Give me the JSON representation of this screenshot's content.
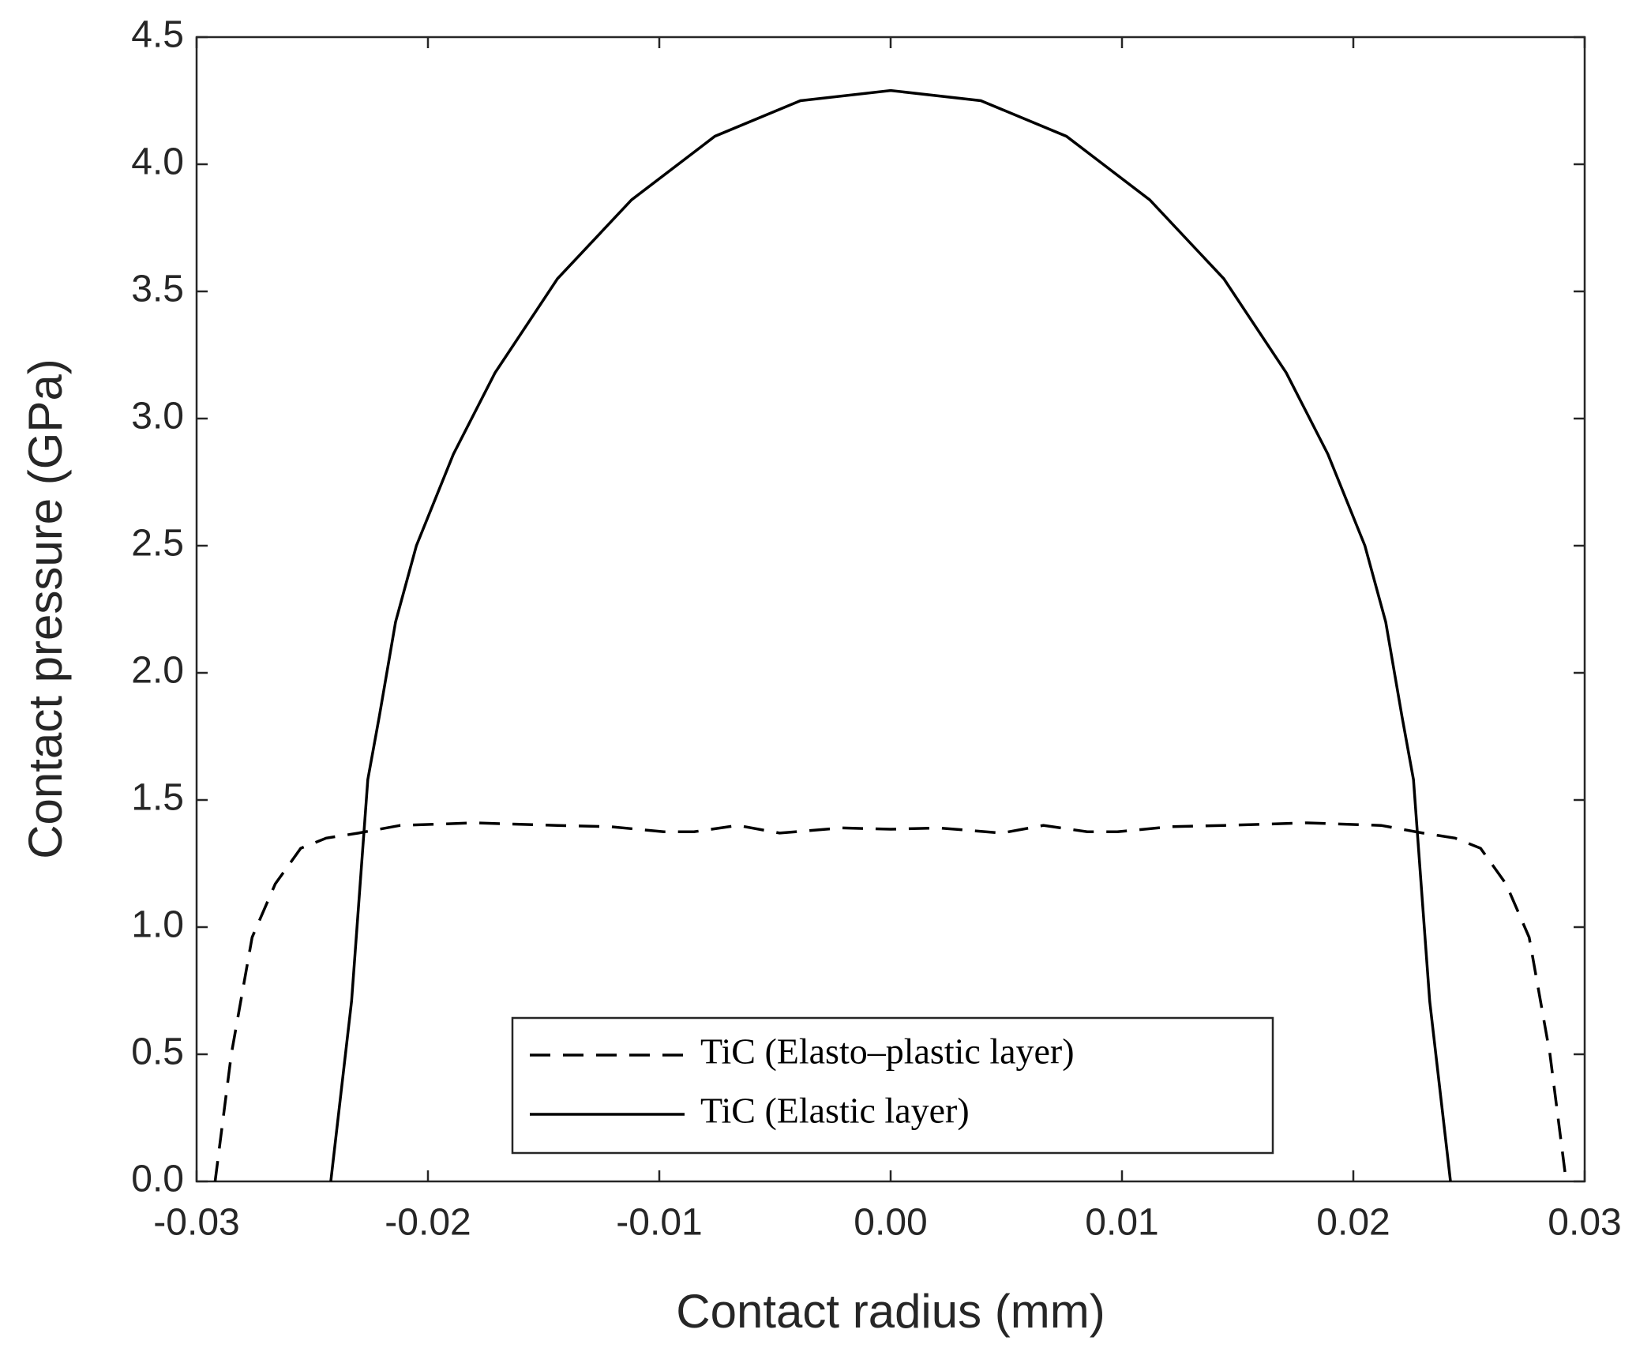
{
  "chart_data": {
    "type": "line",
    "xlabel": "Contact radius (mm)",
    "ylabel": "Contact pressure (GPa)",
    "xlim": [
      -0.03,
      0.03
    ],
    "xticks": [
      -0.03,
      -0.02,
      -0.01,
      {
        "value": 0,
        "label": "0.00"
      },
      0.01,
      0.02,
      0.03
    ],
    "ylim": [
      0,
      4.5
    ],
    "yticks": [
      {
        "value": 0,
        "label": "0.0"
      },
      0.5,
      {
        "value": 1,
        "label": "1.0"
      },
      1.5,
      {
        "value": 2,
        "label": "2.0"
      },
      2.5,
      {
        "value": 3,
        "label": "3.0"
      },
      3.5,
      {
        "value": 4,
        "label": "4.0"
      },
      4.5
    ],
    "legend": "lower center",
    "series": [
      {
        "name": "TiC (Elasto–plastic layer)",
        "color": "#000000",
        "dash": "dashed",
        "x": [
          -0.0292,
          -0.0285,
          -0.0276,
          -0.0266,
          -0.0255,
          -0.0244,
          -0.023,
          -0.0212,
          -0.018,
          -0.0144,
          -0.0121,
          -0.0098,
          -0.0085,
          -0.0066,
          -0.0048,
          -0.0021,
          0,
          0.0021,
          0.0048,
          0.0066,
          0.0085,
          0.0098,
          0.0121,
          0.0144,
          0.018,
          0.0212,
          0.023,
          0.0244,
          0.0255,
          0.0266,
          0.0276,
          0.0285,
          0.0292
        ],
        "values": [
          0,
          0.5,
          0.96,
          1.17,
          1.31,
          1.35,
          1.37,
          1.4,
          1.41,
          1.4,
          1.395,
          1.375,
          1.375,
          1.4,
          1.37,
          1.39,
          1.385,
          1.39,
          1.37,
          1.4,
          1.375,
          1.375,
          1.395,
          1.4,
          1.41,
          1.4,
          1.37,
          1.35,
          1.31,
          1.17,
          0.96,
          0.5,
          0
        ]
      },
      {
        "name": "TiC (Elastic layer)",
        "color": "#000000",
        "dash": "solid",
        "x": [
          -0.0242,
          -0.0233,
          -0.0226,
          -0.0221,
          -0.0214,
          -0.0205,
          -0.0189,
          -0.0171,
          -0.0144,
          -0.0112,
          -0.0076,
          -0.0039,
          0,
          0.0039,
          0.0076,
          0.0112,
          0.0144,
          0.0171,
          0.0189,
          0.0205,
          0.0214,
          0.0221,
          0.0226,
          0.0233,
          0.0242
        ],
        "values": [
          0,
          0.71,
          1.58,
          1.83,
          2.2,
          2.5,
          2.86,
          3.18,
          3.55,
          3.86,
          4.11,
          4.25,
          4.29,
          4.25,
          4.11,
          3.86,
          3.55,
          3.18,
          2.86,
          2.5,
          2.2,
          1.83,
          1.58,
          0.71,
          0
        ]
      }
    ]
  }
}
